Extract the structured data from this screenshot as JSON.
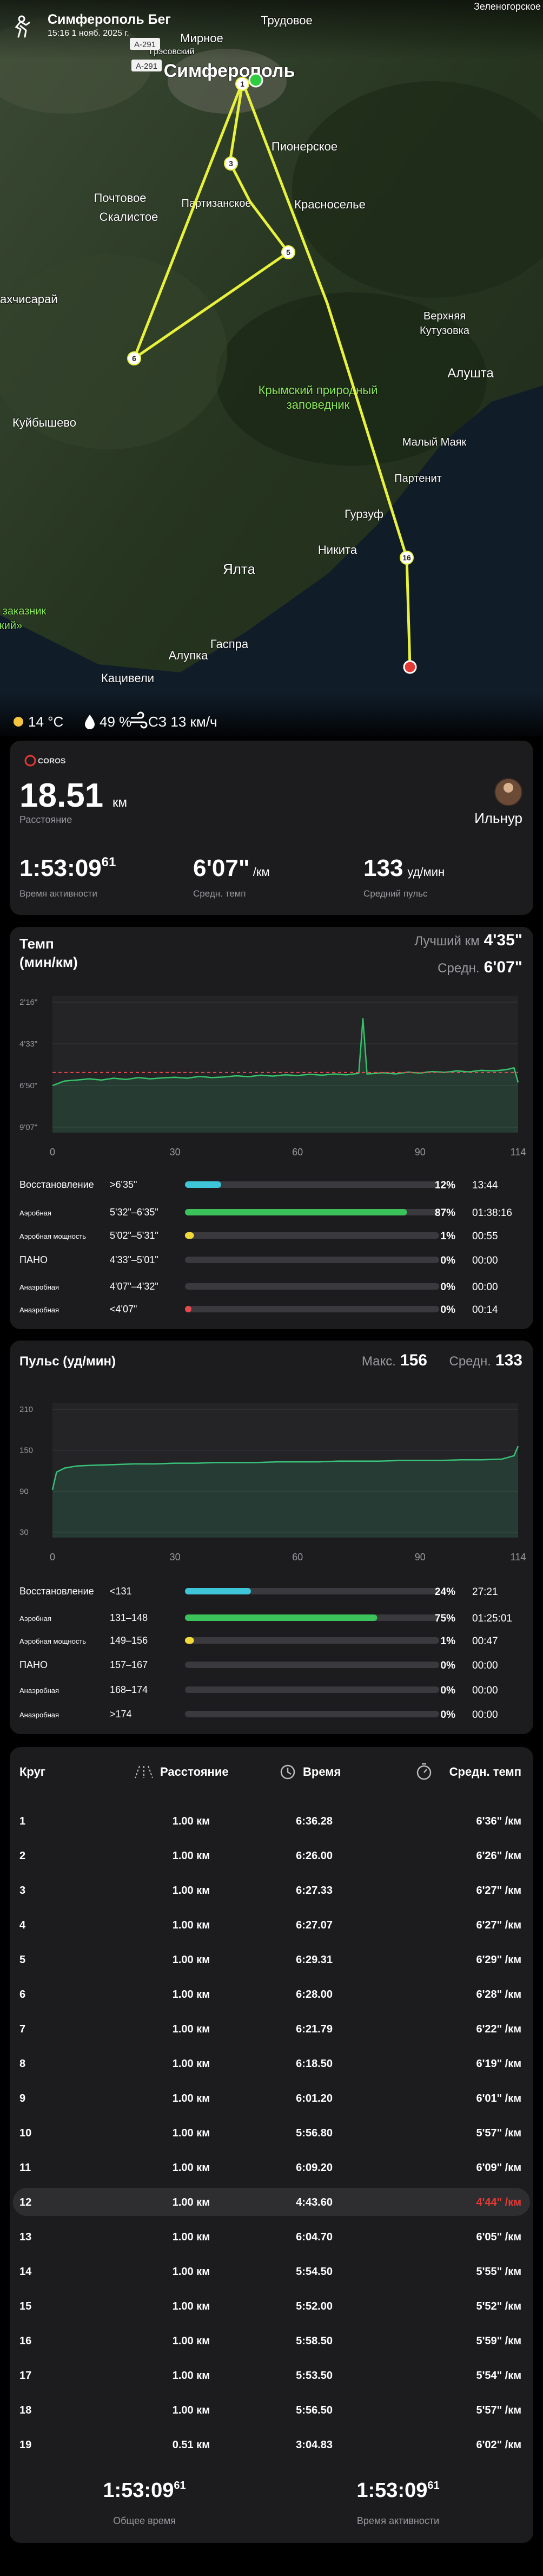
{
  "header": {
    "title": "Симферополь Бег",
    "datetime": "15:16 1 нояб. 2025 г."
  },
  "map": {
    "places": [
      "Трудовое",
      "Мирное",
      "Грэсовский",
      "Симферополь",
      "Зеленогорское",
      "Пионерское",
      "Почтовое",
      "Партизанское",
      "Красноселье",
      "Скалистое",
      "ахчисарай",
      "Верхняя",
      "Кутузовка",
      "Крымский природный",
      "заповедник",
      "Алушта",
      "Куйбышево",
      "Малый Маяк",
      "Партенит",
      "Гурзуф",
      "Никита",
      "Ялта",
      "заказник",
      "кий»",
      "Гаспра",
      "Алупка",
      "Кацивели"
    ],
    "road_signs": [
      "A-291",
      "A-291"
    ],
    "route_markers": [
      "1",
      "3",
      "5",
      "6",
      "16"
    ]
  },
  "weather": {
    "temperature": "14 °C",
    "humidity": "49 %",
    "wind": "СЗ 13 км/ч"
  },
  "summary": {
    "brand": "COROS",
    "distance": "18.51",
    "distance_unit": "км",
    "distance_label": "Расстояние",
    "user": "Ильнур",
    "active_time": "1:53:09",
    "active_time_sup": "61",
    "active_time_label": "Время активности",
    "pace": "6'07\"",
    "pace_unit": "/км",
    "pace_label": "Средн. темп",
    "heart_rate": "133",
    "heart_rate_unit": "уд/мин",
    "heart_rate_label": "Средний пульс"
  },
  "pace_chart": {
    "type": "area",
    "title": "Темп",
    "unit": "(мин/км)",
    "best_label": "Лучший км",
    "best": {
      "value": 275,
      "label": "4'35\""
    },
    "avg_label": "Средн.",
    "avg": {
      "value": 367,
      "label": "6'07\""
    },
    "color": "#36c36b",
    "avg_color": "#e5484d",
    "y_inverted": true,
    "xlim": [
      0,
      114
    ],
    "xticks": [
      0,
      30,
      60,
      90,
      114
    ],
    "ylim": [
      136,
      547
    ],
    "yticks": [
      {
        "value": 136,
        "label": "2'16\""
      },
      {
        "value": 273,
        "label": "4'33\""
      },
      {
        "value": 410,
        "label": "6'50\""
      },
      {
        "value": 547,
        "label": "9'07\""
      }
    ],
    "x": [
      0,
      3,
      6,
      9,
      12,
      15,
      18,
      21,
      24,
      27,
      30,
      33,
      36,
      39,
      42,
      45,
      48,
      51,
      54,
      57,
      60,
      63,
      66,
      69,
      72,
      75,
      76,
      77,
      78,
      81,
      84,
      87,
      90,
      93,
      96,
      99,
      102,
      105,
      108,
      111,
      113,
      114
    ],
    "values": [
      410,
      395,
      392,
      388,
      392,
      386,
      390,
      384,
      388,
      385,
      383,
      386,
      380,
      384,
      382,
      378,
      381,
      376,
      379,
      375,
      377,
      373,
      376,
      372,
      375,
      370,
      190,
      372,
      371,
      368,
      372,
      366,
      369,
      364,
      367,
      362,
      365,
      360,
      362,
      358,
      352,
      400
    ]
  },
  "pace_zones": {
    "names": [
      "Восстановление",
      "Аэробная",
      "Аэробная мощность",
      "ПАНО",
      "Анаэробная",
      "Анаэробная"
    ],
    "ranges": [
      ">6'35\"",
      "5'32\"–6'35\"",
      "5'02\"–5'31\"",
      "4'33\"–5'01\"",
      "4'07\"–4'32\"",
      "<4'07\""
    ],
    "values": [
      12,
      87,
      1,
      0,
      0,
      0
    ],
    "value_labels": [
      "12%",
      "87%",
      "1%",
      "0%",
      "0%",
      "0%"
    ],
    "times": [
      "13:44",
      "01:38:16",
      "00:55",
      "00:00",
      "00:00",
      "00:14"
    ],
    "colors": [
      "#3ec6d8",
      "#3cc25a",
      "#f2d93a",
      null,
      null,
      "#e5484d"
    ]
  },
  "hr_chart": {
    "type": "area",
    "title": "Пульс (уд/мин)",
    "max_label": "Макс.",
    "max": 156,
    "avg_label": "Средн.",
    "avg": 133,
    "color": "#39c27a",
    "xlim": [
      0,
      114
    ],
    "xticks": [
      0,
      30,
      60,
      90,
      114
    ],
    "ylim": [
      30,
      210
    ],
    "yticks": [
      30,
      90,
      150,
      210
    ],
    "x": [
      0,
      1,
      3,
      6,
      10,
      15,
      20,
      25,
      30,
      35,
      40,
      45,
      50,
      55,
      60,
      65,
      70,
      75,
      80,
      85,
      90,
      95,
      100,
      105,
      110,
      113,
      114
    ],
    "values": [
      92,
      118,
      124,
      127,
      128,
      129,
      130,
      130,
      131,
      131,
      132,
      132,
      132,
      133,
      133,
      133,
      134,
      134,
      134,
      135,
      135,
      135,
      136,
      136,
      137,
      142,
      156
    ]
  },
  "hr_zones": {
    "names": [
      "Восстановление",
      "Аэробная",
      "Аэробная мощность",
      "ПАНО",
      "Анаэробная",
      "Анаэробная"
    ],
    "ranges": [
      "<131",
      "131–148",
      "149–156",
      "157–167",
      "168–174",
      ">174"
    ],
    "values": [
      24,
      75,
      1,
      0,
      0,
      0
    ],
    "value_labels": [
      "24%",
      "75%",
      "1%",
      "0%",
      "0%",
      "0%"
    ],
    "times": [
      "27:21",
      "01:25:01",
      "00:47",
      "00:00",
      "00:00",
      "00:00"
    ],
    "colors": [
      "#3ec6d8",
      "#3cc25a",
      "#f2d93a",
      null,
      null,
      null
    ]
  },
  "laps": {
    "header": [
      "Круг",
      "Расстояние",
      "Время",
      "Средн. темп"
    ],
    "highlight_row": 11,
    "rows": [
      [
        "1",
        "1.00 км",
        "6:36.28",
        "6'36\" /км"
      ],
      [
        "2",
        "1.00 км",
        "6:26.00",
        "6'26\" /км"
      ],
      [
        "3",
        "1.00 км",
        "6:27.33",
        "6'27\" /км"
      ],
      [
        "4",
        "1.00 км",
        "6:27.07",
        "6'27\" /км"
      ],
      [
        "5",
        "1.00 км",
        "6:29.31",
        "6'29\" /км"
      ],
      [
        "6",
        "1.00 км",
        "6:28.00",
        "6'28\" /км"
      ],
      [
        "7",
        "1.00 км",
        "6:21.79",
        "6'22\" /км"
      ],
      [
        "8",
        "1.00 км",
        "6:18.50",
        "6'19\" /км"
      ],
      [
        "9",
        "1.00 км",
        "6:01.20",
        "6'01\" /км"
      ],
      [
        "10",
        "1.00 км",
        "5:56.80",
        "5'57\" /км"
      ],
      [
        "11",
        "1.00 км",
        "6:09.20",
        "6'09\" /км"
      ],
      [
        "12",
        "1.00 км",
        "4:43.60",
        "4'44\" /км"
      ],
      [
        "13",
        "1.00 км",
        "6:04.70",
        "6'05\" /км"
      ],
      [
        "14",
        "1.00 км",
        "5:54.50",
        "5'55\" /км"
      ],
      [
        "15",
        "1.00 км",
        "5:52.00",
        "5'52\" /км"
      ],
      [
        "16",
        "1.00 км",
        "5:58.50",
        "5'59\" /км"
      ],
      [
        "17",
        "1.00 км",
        "5:53.50",
        "5'54\" /км"
      ],
      [
        "18",
        "1.00 км",
        "5:56.50",
        "5'57\" /км"
      ],
      [
        "19",
        "0.51 км",
        "3:04.83",
        "6'02\" /км"
      ]
    ]
  },
  "footer": {
    "total_time": "1:53:09",
    "total_time_sup": "61",
    "total_label": "Общее время",
    "active_time": "1:53:09",
    "active_time_sup": "61",
    "active_label": "Время активности"
  }
}
